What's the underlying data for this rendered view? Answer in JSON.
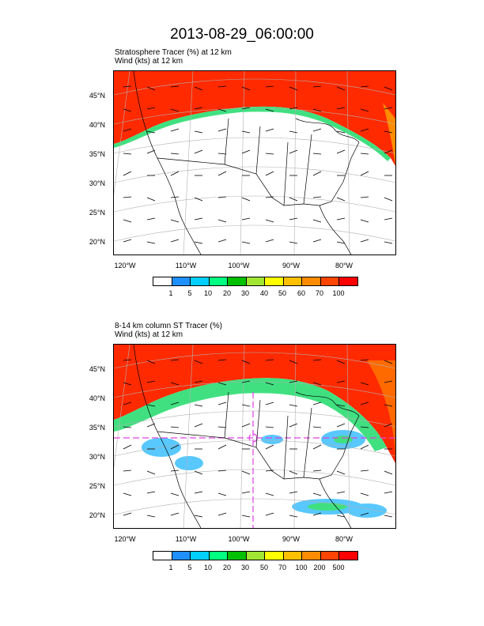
{
  "title": "2013-08-29_06:00:00",
  "panel1": {
    "line1": "Stratosphere Tracer   (%)    at   12 km",
    "line2": "Wind   (kts)    at   12 km",
    "colorbar_labels": [
      "1",
      "5",
      "10",
      "20",
      "30",
      "40",
      "50",
      "60",
      "70",
      "100"
    ]
  },
  "panel2": {
    "line1": "8-14 km column ST Tracer   (%)",
    "line2": "Wind   (kts)    at   12 km",
    "colorbar_labels": [
      "1",
      "5",
      "10",
      "20",
      "30",
      "50",
      "70",
      "100",
      "200",
      "500"
    ]
  },
  "lat_labels": [
    "45°N",
    "40°N",
    "35°N",
    "30°N",
    "25°N",
    "20°N"
  ],
  "lon_labels": [
    "120°W",
    "110°W",
    "100°W",
    "90°W",
    "80°W"
  ],
  "colorbar_colors": [
    "#ffffff",
    "#1e90ff",
    "#00cfff",
    "#00ff80",
    "#00c000",
    "#a0e632",
    "#ffff00",
    "#ffc000",
    "#ff8c00",
    "#ff4500",
    "#ff0000"
  ],
  "colors": {
    "high_tracer": "#ff2a00",
    "mid_tracer": "#ff6a00",
    "boundary_green": "#40e080",
    "light_blue": "#58c8ff",
    "map_lines": "#000000",
    "grid_lines": "#b0b0b0",
    "contour_magenta": "#e040e0"
  }
}
